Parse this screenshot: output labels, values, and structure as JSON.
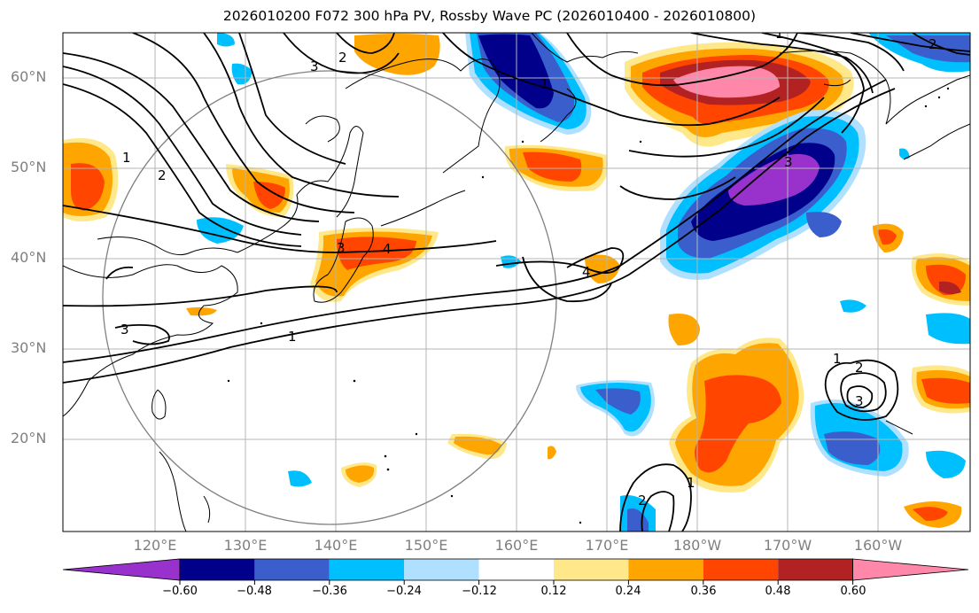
{
  "title": "2026010200 F072 300 hPa PV, Rossby Wave PC (2026010400 - 2026010800)",
  "lat_labels": [
    "60°N",
    "50°N",
    "40°N",
    "30°N",
    "20°N"
  ],
  "lon_labels": [
    "120°E",
    "130°E",
    "140°E",
    "150°E",
    "160°E",
    "170°E",
    "180°W",
    "170°W",
    "160°W"
  ],
  "contour_labels": [
    "1",
    "2",
    "3",
    "4",
    "1",
    "2",
    "3",
    "4",
    "1",
    "2",
    "3",
    "1",
    "2",
    "3",
    "1",
    "2",
    "3",
    "1"
  ],
  "colorbar": {
    "ticks": [
      "−0.60",
      "−0.48",
      "−0.36",
      "−0.24",
      "−0.12",
      "0.12",
      "0.24",
      "0.36",
      "0.48",
      "0.60"
    ],
    "colors": [
      "#9932cc",
      "#00008b",
      "#3a5fcd",
      "#00bfff",
      "#b0e0ff",
      "#ffffff",
      "#ffe88a",
      "#ffa500",
      "#ff4500",
      "#b22222",
      "#ff88aa"
    ]
  },
  "palette": {
    "pos_weak": "#ffe88a",
    "pos_mid": "#ffa500",
    "pos_strong": "#ff4500",
    "pos_vstrong": "#b22222",
    "pos_extreme": "#ff88aa",
    "neg_weak": "#b0e0ff",
    "neg_mid": "#00bfff",
    "neg_strong": "#3a5fcd",
    "neg_vstrong": "#00008b",
    "neg_extreme": "#9932cc",
    "grid": "#b5b5b5",
    "axis_label": "#7f7f7f"
  }
}
